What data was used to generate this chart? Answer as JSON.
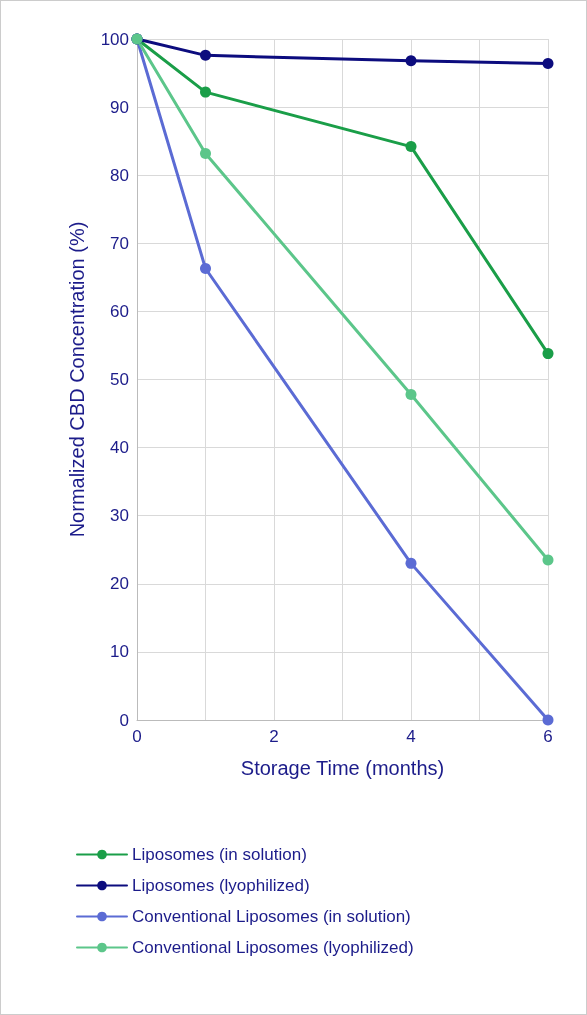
{
  "chart_data": {
    "type": "line",
    "xlabel": "Storage Time (months)",
    "ylabel": "Normalized CBD Concentration (%)",
    "x": [
      0,
      1,
      4,
      6
    ],
    "series": [
      {
        "name": "Liposomes (in solution)",
        "color": "#1a9e48",
        "values": [
          100,
          92.2,
          84.2,
          53.8
        ]
      },
      {
        "name": "Liposomes (lyophilized)",
        "color": "#0c0c7e",
        "values": [
          100,
          97.6,
          96.8,
          96.4
        ]
      },
      {
        "name": "Conventional Liposomes (in solution)",
        "color": "#5b6bd4",
        "values": [
          100,
          66.3,
          23,
          0
        ]
      },
      {
        "name": "Conventional Liposomes (lyophilized)",
        "color": "#5cc68a",
        "values": [
          100,
          83.2,
          47.8,
          23.5
        ]
      }
    ],
    "xlim": [
      0,
      6
    ],
    "xticks": [
      0,
      {
        "value": 1,
        "label": null
      },
      2,
      {
        "value": 3,
        "label": null
      },
      4,
      {
        "value": 5,
        "label": null
      },
      6
    ],
    "ylim": [
      0,
      100
    ],
    "yticks": [
      0,
      10,
      20,
      30,
      40,
      50,
      60,
      70,
      80,
      90,
      100
    ],
    "grid": true,
    "legend": "bottom",
    "marker": "circle",
    "line_style": "solid"
  }
}
